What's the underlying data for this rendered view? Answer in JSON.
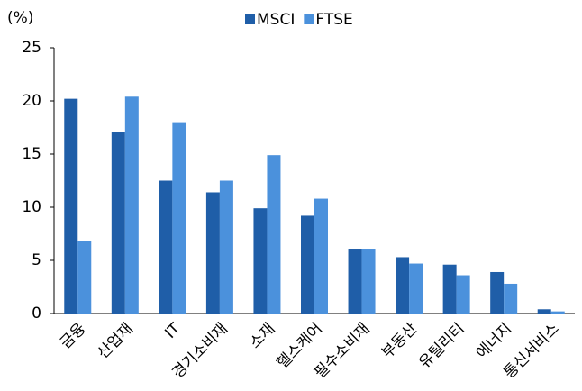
{
  "chart_data": {
    "type": "bar",
    "y_label": "(%)",
    "categories": [
      "금융",
      "산업재",
      "IT",
      "경기소비재",
      "소재",
      "헬스케어",
      "필수소비재",
      "부동산",
      "유틸리티",
      "에너지",
      "통신서비스"
    ],
    "series": [
      {
        "name": "MSCI",
        "color": "#1f5ea8",
        "values": [
          20.2,
          17.1,
          12.5,
          11.4,
          9.9,
          9.2,
          6.1,
          5.3,
          4.6,
          3.9,
          0.4
        ]
      },
      {
        "name": "FTSE",
        "color": "#4b91dc",
        "values": [
          6.8,
          20.4,
          18.0,
          12.5,
          14.9,
          10.8,
          6.1,
          4.7,
          3.6,
          2.8,
          0.2
        ]
      }
    ],
    "ylim": [
      0,
      25
    ],
    "yticks": [
      0,
      5,
      10,
      15,
      20,
      25
    ],
    "legend": "top"
  }
}
